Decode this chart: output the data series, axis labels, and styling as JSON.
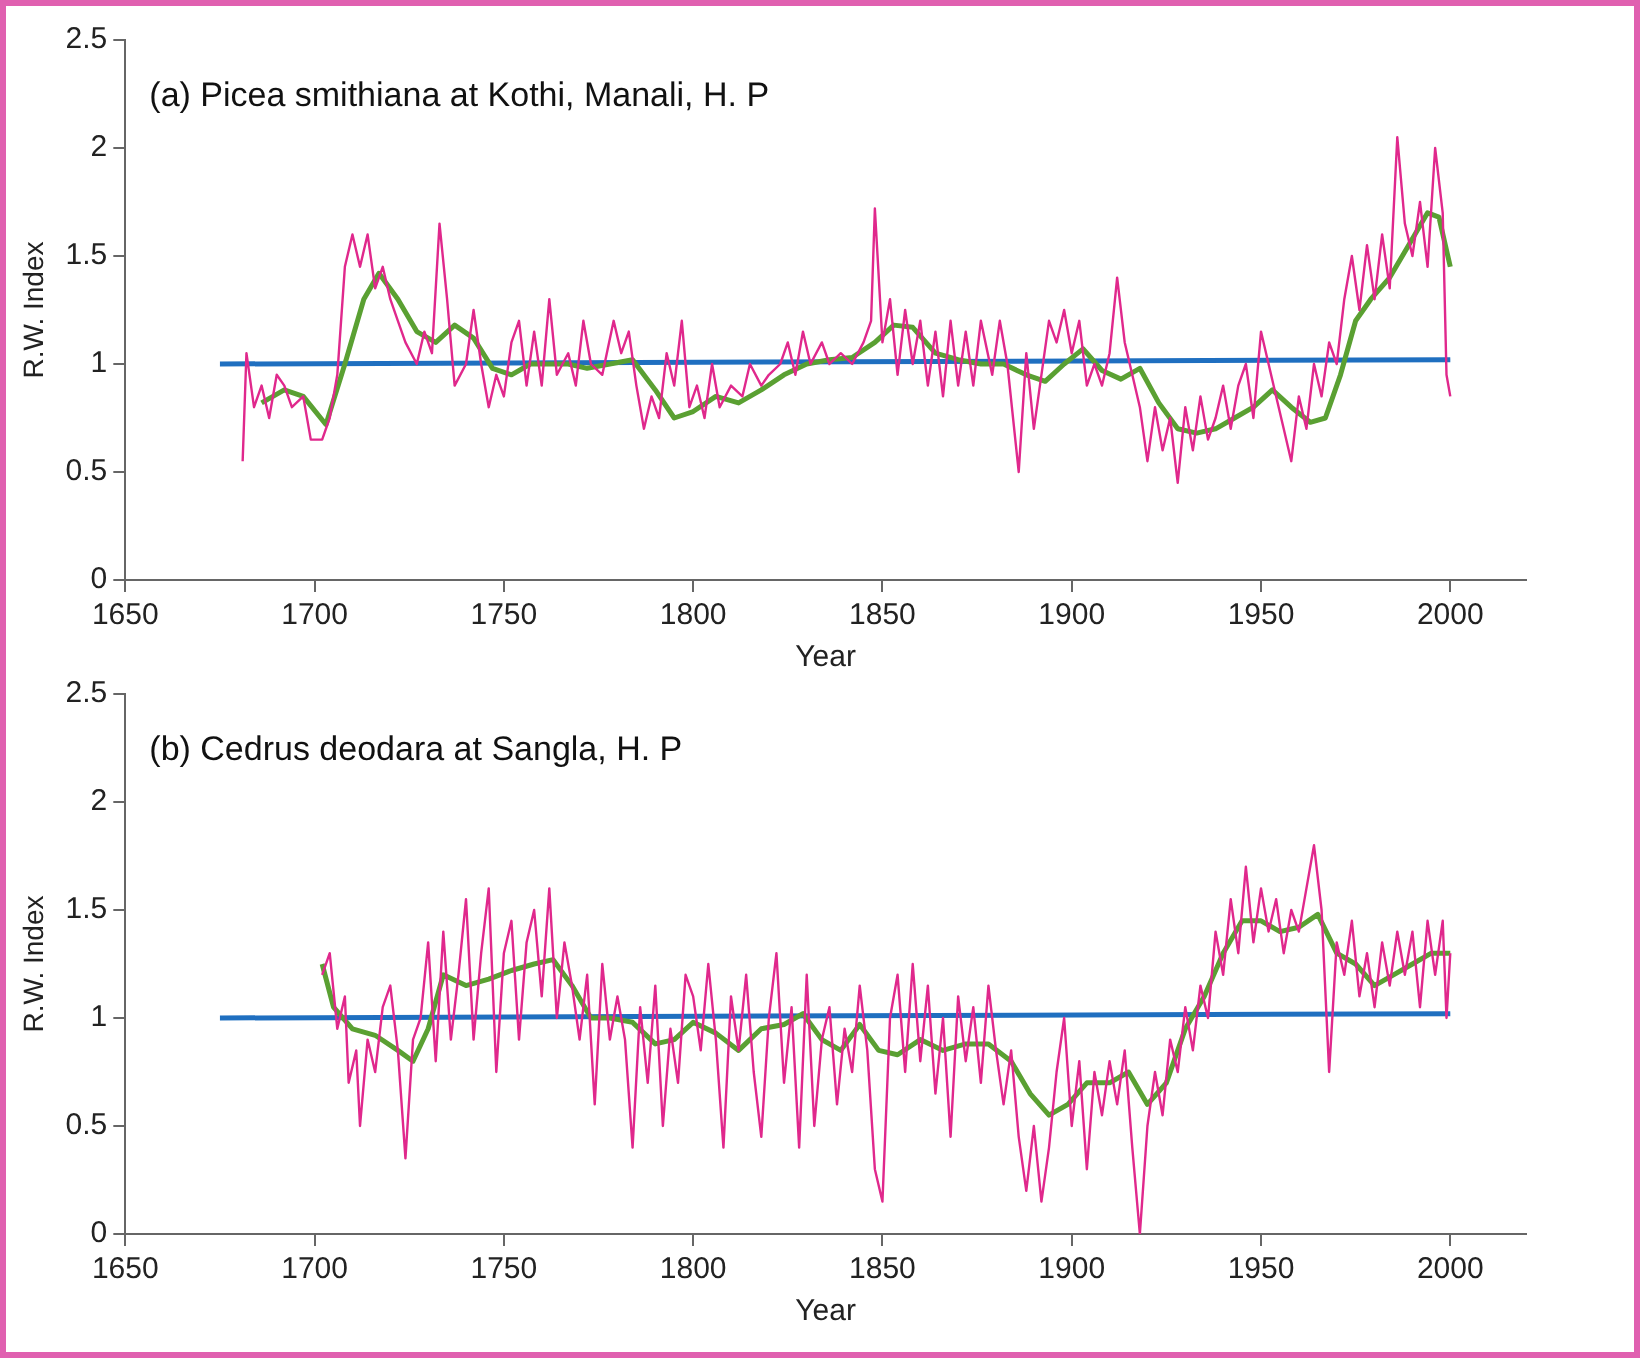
{
  "chart_data": [
    {
      "type": "line",
      "title": "(a) Picea smithiana at Kothi, Manali, H. P",
      "xlabel": "Year",
      "ylabel": "R.W. Index",
      "xlim": [
        1650,
        2020
      ],
      "xticks": [
        1650,
        1700,
        1750,
        1800,
        1850,
        1900,
        1950,
        2000
      ],
      "ylim": [
        0,
        2.5
      ],
      "yticks": [
        0,
        0.5,
        1,
        1.5,
        2,
        2.5
      ],
      "grid": false,
      "legend": false,
      "series": [
        {
          "color": "#e0288c",
          "x": [
            1681,
            1682,
            1684,
            1686,
            1688,
            1690,
            1692,
            1694,
            1697,
            1699,
            1702,
            1704,
            1706,
            1708,
            1710,
            1712,
            1714,
            1716,
            1718,
            1720,
            1722,
            1724,
            1727,
            1729,
            1731,
            1733,
            1735,
            1737,
            1740,
            1742,
            1744,
            1746,
            1748,
            1750,
            1752,
            1754,
            1756,
            1758,
            1760,
            1762,
            1764,
            1767,
            1769,
            1771,
            1773,
            1776,
            1779,
            1781,
            1783,
            1785,
            1787,
            1789,
            1791,
            1793,
            1795,
            1797,
            1799,
            1801,
            1803,
            1805,
            1807,
            1810,
            1813,
            1815,
            1818,
            1820,
            1823,
            1825,
            1827,
            1829,
            1831,
            1834,
            1836,
            1839,
            1842,
            1845,
            1847,
            1848,
            1850,
            1852,
            1854,
            1856,
            1858,
            1860,
            1862,
            1864,
            1866,
            1868,
            1870,
            1872,
            1874,
            1876,
            1879,
            1881,
            1883,
            1886,
            1888,
            1890,
            1892,
            1894,
            1896,
            1898,
            1900,
            1902,
            1904,
            1906,
            1908,
            1910,
            1912,
            1914,
            1916,
            1918,
            1920,
            1922,
            1924,
            1926,
            1928,
            1930,
            1932,
            1934,
            1936,
            1938,
            1940,
            1942,
            1944,
            1946,
            1948,
            1950,
            1952,
            1954,
            1956,
            1958,
            1960,
            1962,
            1964,
            1966,
            1968,
            1970,
            1972,
            1974,
            1976,
            1978,
            1980,
            1982,
            1984,
            1986,
            1988,
            1990,
            1992,
            1994,
            1996,
            1998,
            1999,
            2000
          ],
          "values": [
            0.55,
            1.05,
            0.8,
            0.9,
            0.75,
            0.95,
            0.9,
            0.8,
            0.85,
            0.65,
            0.65,
            0.75,
            0.95,
            1.45,
            1.6,
            1.45,
            1.6,
            1.35,
            1.45,
            1.3,
            1.2,
            1.1,
            1.0,
            1.15,
            1.05,
            1.65,
            1.3,
            0.9,
            1.0,
            1.25,
            1.0,
            0.8,
            0.95,
            0.85,
            1.1,
            1.2,
            0.9,
            1.15,
            0.9,
            1.3,
            0.95,
            1.05,
            0.9,
            1.2,
            1.0,
            0.95,
            1.2,
            1.05,
            1.15,
            0.9,
            0.7,
            0.85,
            0.75,
            1.05,
            0.9,
            1.2,
            0.8,
            0.9,
            0.75,
            1.0,
            0.8,
            0.9,
            0.85,
            1.0,
            0.9,
            0.95,
            1.0,
            1.1,
            0.95,
            1.15,
            1.0,
            1.1,
            1.0,
            1.05,
            1.0,
            1.1,
            1.2,
            1.72,
            1.1,
            1.3,
            0.95,
            1.25,
            1.0,
            1.2,
            0.9,
            1.15,
            0.85,
            1.2,
            0.9,
            1.15,
            0.9,
            1.2,
            0.95,
            1.2,
            1.0,
            0.5,
            1.05,
            0.7,
            0.95,
            1.2,
            1.1,
            1.25,
            1.05,
            1.2,
            0.9,
            1.0,
            0.9,
            1.05,
            1.4,
            1.1,
            0.95,
            0.8,
            0.55,
            0.8,
            0.6,
            0.75,
            0.45,
            0.8,
            0.6,
            0.85,
            0.65,
            0.75,
            0.9,
            0.7,
            0.9,
            1.0,
            0.75,
            1.15,
            1.0,
            0.85,
            0.7,
            0.55,
            0.85,
            0.7,
            1.0,
            0.85,
            1.1,
            1.0,
            1.3,
            1.5,
            1.25,
            1.55,
            1.3,
            1.6,
            1.35,
            2.05,
            1.65,
            1.5,
            1.75,
            1.45,
            2.0,
            1.7,
            0.95,
            0.85
          ]
        },
        {
          "color": "#5aa032",
          "x": [
            1686,
            1692,
            1697,
            1703,
            1708,
            1713,
            1717,
            1722,
            1727,
            1732,
            1737,
            1742,
            1747,
            1752,
            1757,
            1762,
            1767,
            1772,
            1778,
            1784,
            1790,
            1795,
            1800,
            1806,
            1812,
            1818,
            1824,
            1830,
            1836,
            1842,
            1848,
            1853,
            1858,
            1864,
            1870,
            1876,
            1882,
            1888,
            1893,
            1898,
            1903,
            1908,
            1913,
            1918,
            1923,
            1928,
            1933,
            1938,
            1943,
            1948,
            1953,
            1958,
            1963,
            1967,
            1971,
            1975,
            1979,
            1984,
            1989,
            1994,
            1997,
            2000
          ],
          "values": [
            0.82,
            0.88,
            0.85,
            0.72,
            1.0,
            1.3,
            1.42,
            1.3,
            1.15,
            1.1,
            1.18,
            1.12,
            0.98,
            0.95,
            1.0,
            1.0,
            1.0,
            0.98,
            1.0,
            1.02,
            0.88,
            0.75,
            0.78,
            0.85,
            0.82,
            0.88,
            0.95,
            1.0,
            1.02,
            1.03,
            1.1,
            1.18,
            1.17,
            1.05,
            1.02,
            1.0,
            1.0,
            0.95,
            0.92,
            1.0,
            1.07,
            0.97,
            0.93,
            0.98,
            0.82,
            0.7,
            0.68,
            0.7,
            0.75,
            0.8,
            0.88,
            0.8,
            0.73,
            0.75,
            0.95,
            1.2,
            1.3,
            1.4,
            1.55,
            1.7,
            1.68,
            1.45
          ]
        },
        {
          "color": "#1f6fc0",
          "x": [
            1675,
            2000
          ],
          "values": [
            1.0,
            1.02
          ]
        }
      ]
    },
    {
      "type": "line",
      "title": "(b) Cedrus deodara at Sangla, H. P",
      "xlabel": "Year",
      "ylabel": "R.W. Index",
      "xlim": [
        1650,
        2020
      ],
      "xticks": [
        1650,
        1700,
        1750,
        1800,
        1850,
        1900,
        1950,
        2000
      ],
      "ylim": [
        0,
        2.5
      ],
      "yticks": [
        0,
        0.5,
        1,
        1.5,
        2,
        2.5
      ],
      "grid": false,
      "legend": false,
      "series": [
        {
          "color": "#e0288c",
          "x": [
            1702,
            1704,
            1706,
            1708,
            1709,
            1711,
            1712,
            1714,
            1716,
            1718,
            1720,
            1722,
            1724,
            1726,
            1728,
            1730,
            1732,
            1734,
            1736,
            1738,
            1740,
            1742,
            1744,
            1746,
            1748,
            1750,
            1752,
            1754,
            1756,
            1758,
            1760,
            1762,
            1764,
            1766,
            1768,
            1770,
            1772,
            1774,
            1776,
            1778,
            1780,
            1782,
            1784,
            1786,
            1788,
            1790,
            1792,
            1794,
            1796,
            1798,
            1800,
            1802,
            1804,
            1806,
            1808,
            1810,
            1812,
            1814,
            1816,
            1818,
            1820,
            1822,
            1824,
            1826,
            1828,
            1830,
            1832,
            1834,
            1836,
            1838,
            1840,
            1842,
            1844,
            1846,
            1848,
            1850,
            1852,
            1854,
            1856,
            1858,
            1860,
            1862,
            1864,
            1866,
            1868,
            1870,
            1872,
            1874,
            1876,
            1878,
            1880,
            1882,
            1884,
            1886,
            1888,
            1890,
            1892,
            1894,
            1896,
            1898,
            1900,
            1902,
            1904,
            1906,
            1908,
            1910,
            1912,
            1914,
            1916,
            1918,
            1920,
            1922,
            1924,
            1926,
            1928,
            1930,
            1932,
            1934,
            1936,
            1938,
            1940,
            1942,
            1944,
            1946,
            1948,
            1950,
            1952,
            1954,
            1956,
            1958,
            1960,
            1962,
            1964,
            1966,
            1968,
            1970,
            1972,
            1974,
            1976,
            1978,
            1980,
            1982,
            1984,
            1986,
            1988,
            1990,
            1992,
            1994,
            1996,
            1998,
            1999,
            2000
          ],
          "values": [
            1.2,
            1.3,
            0.95,
            1.1,
            0.7,
            0.85,
            0.5,
            0.9,
            0.75,
            1.05,
            1.15,
            0.85,
            0.35,
            0.9,
            1.0,
            1.35,
            0.8,
            1.4,
            0.9,
            1.2,
            1.55,
            0.9,
            1.3,
            1.6,
            0.75,
            1.3,
            1.45,
            0.9,
            1.35,
            1.5,
            1.1,
            1.6,
            1.0,
            1.35,
            1.15,
            0.9,
            1.2,
            0.6,
            1.25,
            0.9,
            1.1,
            0.9,
            0.4,
            1.05,
            0.7,
            1.15,
            0.5,
            0.95,
            0.7,
            1.2,
            1.1,
            0.85,
            1.25,
            0.9,
            0.4,
            1.1,
            0.85,
            1.2,
            0.75,
            0.45,
            1.0,
            1.3,
            0.7,
            1.05,
            0.4,
            1.2,
            0.5,
            0.9,
            1.05,
            0.6,
            0.95,
            0.75,
            1.15,
            0.85,
            0.3,
            0.15,
            1.0,
            1.2,
            0.75,
            1.25,
            0.8,
            1.15,
            0.65,
            1.0,
            0.45,
            1.1,
            0.8,
            1.05,
            0.7,
            1.15,
            0.85,
            0.6,
            0.85,
            0.45,
            0.2,
            0.5,
            0.15,
            0.4,
            0.75,
            1.0,
            0.5,
            0.8,
            0.3,
            0.75,
            0.55,
            0.8,
            0.6,
            0.85,
            0.4,
            0.0,
            0.5,
            0.75,
            0.55,
            0.9,
            0.75,
            1.05,
            0.85,
            1.15,
            1.0,
            1.4,
            1.2,
            1.55,
            1.3,
            1.7,
            1.35,
            1.6,
            1.4,
            1.55,
            1.3,
            1.5,
            1.4,
            1.6,
            1.8,
            1.5,
            0.75,
            1.35,
            1.2,
            1.45,
            1.1,
            1.3,
            1.05,
            1.35,
            1.15,
            1.4,
            1.2,
            1.4,
            1.05,
            1.45,
            1.2,
            1.45,
            1.0,
            1.3
          ]
        },
        {
          "color": "#5aa032",
          "x": [
            1702,
            1705,
            1710,
            1716,
            1722,
            1726,
            1730,
            1734,
            1740,
            1746,
            1752,
            1758,
            1763,
            1768,
            1773,
            1778,
            1784,
            1790,
            1795,
            1800,
            1806,
            1812,
            1818,
            1824,
            1829,
            1834,
            1839,
            1844,
            1849,
            1854,
            1860,
            1866,
            1872,
            1878,
            1884,
            1889,
            1894,
            1899,
            1904,
            1910,
            1915,
            1920,
            1925,
            1930,
            1935,
            1940,
            1945,
            1950,
            1955,
            1960,
            1965,
            1970,
            1975,
            1980,
            1985,
            1990,
            1995,
            2000
          ],
          "values": [
            1.25,
            1.05,
            0.95,
            0.92,
            0.85,
            0.8,
            0.95,
            1.2,
            1.15,
            1.18,
            1.22,
            1.25,
            1.27,
            1.15,
            1.0,
            1.0,
            0.98,
            0.88,
            0.9,
            0.98,
            0.93,
            0.85,
            0.95,
            0.97,
            1.02,
            0.9,
            0.85,
            0.97,
            0.85,
            0.83,
            0.9,
            0.85,
            0.88,
            0.88,
            0.8,
            0.65,
            0.55,
            0.6,
            0.7,
            0.7,
            0.75,
            0.6,
            0.7,
            0.95,
            1.1,
            1.3,
            1.45,
            1.45,
            1.4,
            1.42,
            1.48,
            1.3,
            1.25,
            1.15,
            1.2,
            1.25,
            1.3,
            1.3
          ]
        },
        {
          "color": "#1f6fc0",
          "x": [
            1675,
            2000
          ],
          "values": [
            1.0,
            1.02
          ]
        }
      ]
    }
  ]
}
